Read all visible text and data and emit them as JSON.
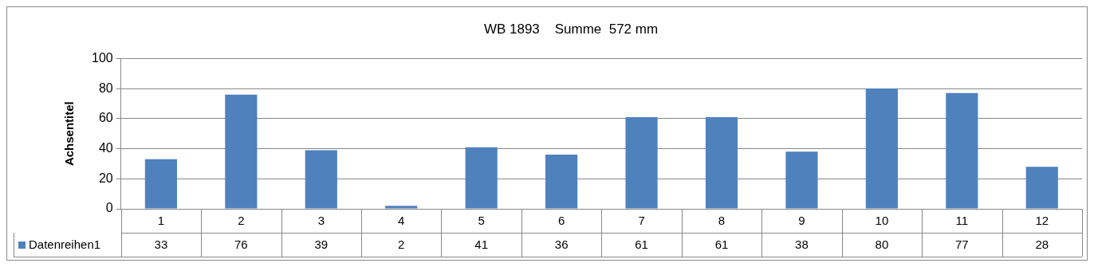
{
  "chart_data": {
    "type": "bar",
    "title": "WB 1893    Summe  572 mm",
    "ylabel": "Achsentitel",
    "categories": [
      "1",
      "2",
      "3",
      "4",
      "5",
      "6",
      "7",
      "8",
      "9",
      "10",
      "11",
      "12"
    ],
    "series": [
      {
        "name": "Datenreihen1",
        "color": "#4f81bd",
        "values": [
          33,
          76,
          39,
          2,
          41,
          36,
          61,
          61,
          38,
          80,
          77,
          28
        ]
      }
    ],
    "ylim": [
      0,
      100
    ],
    "yticks": [
      0,
      20,
      40,
      60,
      80,
      100
    ],
    "grid": "y",
    "legend": "bottom",
    "data_labels": true
  }
}
